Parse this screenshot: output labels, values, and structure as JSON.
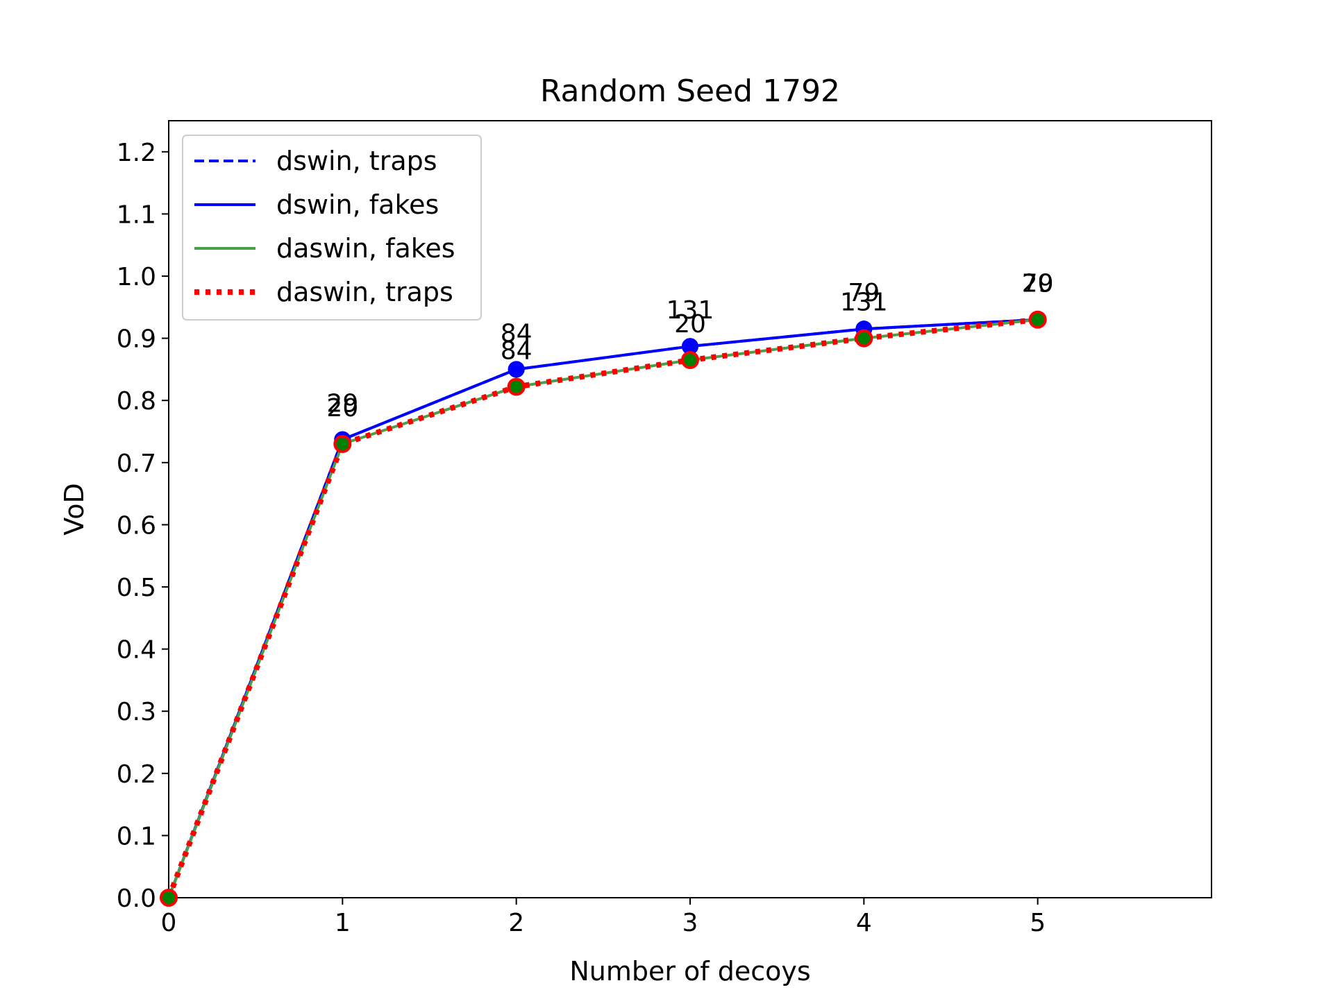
{
  "chart_data": {
    "type": "line",
    "title": "Random Seed 1792",
    "xlabel": "Number of decoys",
    "ylabel": "VoD",
    "xlim": [
      0,
      6
    ],
    "ylim": [
      0,
      1.25
    ],
    "xticks": [
      "0",
      "1",
      "2",
      "3",
      "4",
      "5"
    ],
    "yticks": [
      "0.0",
      "0.1",
      "0.2",
      "0.3",
      "0.4",
      "0.5",
      "0.6",
      "0.7",
      "0.8",
      "0.9",
      "1.0",
      "1.1",
      "1.2"
    ],
    "grid": false,
    "legend_position": "top-left",
    "x": [
      0,
      1,
      2,
      3,
      4,
      5
    ],
    "series": [
      {
        "name": "dswin, traps",
        "values": [
          0.0,
          0.737,
          0.85,
          0.887,
          0.915,
          0.93
        ],
        "color": "#0000ff",
        "style": "dashed",
        "marker": "circle",
        "labels": [
          "",
          "29",
          "84",
          "131",
          "79",
          "20"
        ]
      },
      {
        "name": "dswin, fakes",
        "values": [
          0.0,
          0.737,
          0.85,
          0.887,
          0.915,
          0.93
        ],
        "color": "#0000ff",
        "style": "solid",
        "marker": "circle",
        "labels": [
          "",
          "29",
          "84",
          "131",
          "79",
          "20"
        ]
      },
      {
        "name": "daswin, fakes",
        "values": [
          0.0,
          0.73,
          0.822,
          0.865,
          0.9,
          0.93
        ],
        "color": "#4a9f4a",
        "style": "solid",
        "marker": "circle-green",
        "labels": [
          "",
          "20",
          "84",
          "20",
          "131",
          "79"
        ]
      },
      {
        "name": "daswin, traps",
        "values": [
          0.0,
          0.73,
          0.822,
          0.865,
          0.9,
          0.93
        ],
        "color": "#ff0000",
        "style": "dotted",
        "marker": "circle-open",
        "labels": [
          "",
          "20",
          "84",
          "20",
          "131",
          "79"
        ]
      }
    ]
  }
}
